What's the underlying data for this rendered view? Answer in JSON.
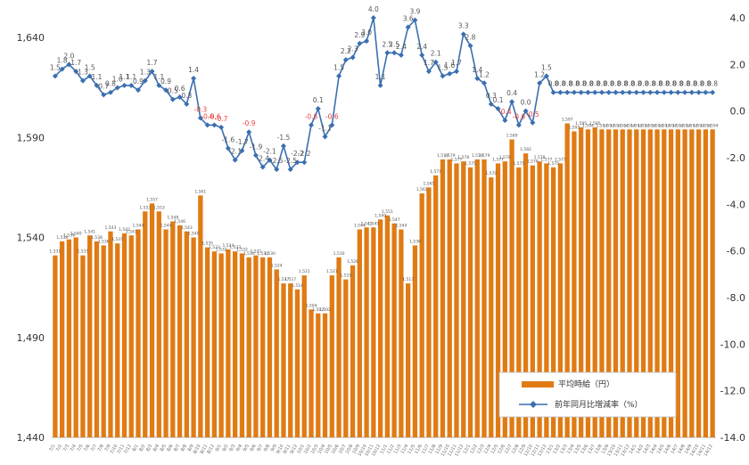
{
  "chart_data": {
    "type": "bar+line",
    "x": [
      "7/1",
      "7/2",
      "7/3",
      "7/4",
      "7/5",
      "7/6",
      "7/7",
      "7/8",
      "7/9",
      "7/10",
      "7/11",
      "7/12",
      "8/1",
      "8/2",
      "8/3",
      "8/4",
      "8/5",
      "8/6",
      "8/7",
      "8/8",
      "8/9",
      "8/10",
      "8/11",
      "8/12",
      "9/1",
      "9/2",
      "9/3",
      "9/4",
      "9/5",
      "9/6",
      "9/7",
      "9/8",
      "9/9",
      "9/10",
      "9/11",
      "9/12",
      "10/1",
      "10/2",
      "10/3",
      "10/4",
      "10/5",
      "10/6",
      "10/7",
      "10/8",
      "10/9",
      "10/10",
      "10/11",
      "10/12",
      "11/1",
      "11/2",
      "11/3",
      "11/4",
      "11/5",
      "11/6",
      "11/7",
      "11/8",
      "11/9",
      "11/10",
      "11/11",
      "11/12",
      "12/1",
      "12/2",
      "12/3",
      "12/4",
      "12/5",
      "12/6",
      "12/7",
      "12/8",
      "12/9",
      "12/10",
      "12/11",
      "12/12",
      "13/1",
      "13/2",
      "13/3",
      "13/4",
      "13/5",
      "13/6",
      "13/7",
      "13/8",
      "13/9",
      "13/10",
      "13/11",
      "13/12",
      "14/1",
      "14/2",
      "14/3",
      "14/4",
      "14/5",
      "14/6",
      "14/7",
      "14/8",
      "14/9",
      "14/10",
      "14/11",
      "14/12"
    ],
    "series": [
      {
        "name": "平均時給（円）",
        "type": "bar",
        "axis": "left",
        "color": "#e07b14",
        "values": [
          1531,
          1538,
          1539,
          1540,
          1531,
          1541,
          1538,
          1536,
          1543,
          1537,
          1542,
          1541,
          1544,
          1553,
          1557,
          1553,
          1544,
          1548,
          1546,
          1543,
          1540,
          1561,
          1535,
          1533,
          1532,
          1534,
          1533,
          1532,
          1530,
          1531,
          1530,
          1530,
          1524,
          1517,
          1517,
          1514,
          1521,
          1504,
          1502,
          1502,
          1521,
          1530,
          1519,
          1526,
          1544,
          1545,
          1545,
          1549,
          1551,
          1547,
          1544,
          1517,
          1536,
          1562,
          1565,
          1571,
          1579,
          1579,
          1577,
          1578,
          1575,
          1579,
          1579,
          1570,
          1577,
          1578,
          1589,
          1575,
          1582,
          1576,
          1578,
          1577,
          1575,
          1577,
          1597,
          1593,
          1595,
          1594,
          1595,
          1594,
          1594,
          1594,
          1594,
          1594,
          1594,
          1594,
          1594,
          1594,
          1594,
          1594,
          1594,
          1594,
          1594,
          1594,
          1594,
          1594
        ]
      },
      {
        "name": "前年同月比増減率（%）",
        "type": "line",
        "axis": "right",
        "color": "#3a6fb0",
        "values": [
          1.5,
          1.8,
          2.0,
          1.7,
          1.3,
          1.5,
          1.1,
          0.7,
          0.8,
          1.0,
          1.1,
          1.1,
          0.9,
          1.3,
          1.7,
          1.1,
          0.9,
          0.5,
          0.6,
          0.3,
          1.4,
          -0.3,
          -0.6,
          -0.6,
          -0.7,
          -1.6,
          -2.1,
          -1.7,
          -0.9,
          -1.9,
          -2.4,
          -2.1,
          -2.5,
          -1.5,
          -2.5,
          -2.2,
          -2.2,
          -0.6,
          0.1,
          -1.1,
          -0.6,
          1.5,
          2.2,
          2.3,
          2.9,
          3.0,
          4.0,
          1.1,
          2.5,
          2.5,
          2.4,
          3.6,
          3.9,
          2.4,
          1.7,
          2.1,
          1.5,
          1.6,
          1.7,
          3.3,
          2.8,
          1.4,
          1.2,
          0.3,
          0.1,
          -0.4,
          0.4,
          -0.6,
          0.0,
          -0.5,
          1.2,
          1.5,
          0.8,
          0.8,
          0.8,
          0.8,
          0.8,
          0.8,
          0.8,
          0.8,
          0.8,
          0.8,
          0.8,
          0.8,
          0.8,
          0.8,
          0.8,
          0.8,
          0.8,
          0.8,
          0.8,
          0.8,
          0.8,
          0.8,
          0.8,
          0.8
        ]
      }
    ],
    "y_left": {
      "ticks": [
        "1,640",
        "1,590",
        "1,540",
        "1,490",
        "1,440"
      ],
      "range": [
        1440,
        1640
      ]
    },
    "y_right": {
      "ticks": [
        "4.0",
        "2.0",
        "0.0",
        "-2.0",
        "-4.0",
        "-6.0",
        "-8.0",
        "-10.0",
        "-12.0",
        "-14.0"
      ],
      "range": [
        -14,
        4
      ]
    },
    "legend": {
      "position": "bottom-right",
      "entries": [
        "平均時給（円）",
        "前年同月比増減率（%）"
      ]
    },
    "negative_label_color": "#e8423c"
  }
}
